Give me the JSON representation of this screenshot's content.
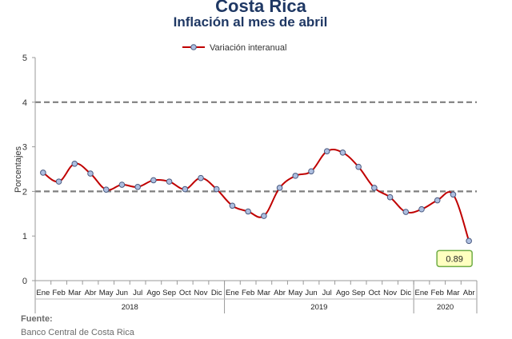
{
  "chart_data": {
    "type": "line",
    "title": "Costa Rica",
    "subtitle": "Inflación al mes de abril",
    "ylabel": "Porcentajes",
    "xlabel": "",
    "ylim": [
      0,
      5
    ],
    "yticks": [
      "0",
      "1",
      "2",
      "3",
      "4",
      "5"
    ],
    "grid": false,
    "legend_position": "top",
    "series": [
      {
        "name": "Variación interanual",
        "color": "#c00000",
        "marker_fill": "#aebfe0",
        "marker_stroke": "#4a5a80",
        "values": [
          2.42,
          2.22,
          2.62,
          2.4,
          2.04,
          2.15,
          2.1,
          2.25,
          2.22,
          2.05,
          2.3,
          2.05,
          1.68,
          1.55,
          1.45,
          2.08,
          2.35,
          2.45,
          2.9,
          2.87,
          2.55,
          2.08,
          1.87,
          1.54,
          1.6,
          1.8,
          1.93,
          0.89
        ]
      }
    ],
    "categories": [
      "Ene",
      "Feb",
      "Mar",
      "Abr",
      "May",
      "Jun",
      "Jul",
      "Ago",
      "Sep",
      "Oct",
      "Nov",
      "Dic",
      "Ene",
      "Feb",
      "Mar",
      "Abr",
      "May",
      "Jun",
      "Jul",
      "Ago",
      "Sep",
      "Oct",
      "Nov",
      "Dic",
      "Ene",
      "Feb",
      "Mar",
      "Abr"
    ],
    "years": [
      {
        "label": "2018",
        "start": 0,
        "end": 11
      },
      {
        "label": "2019",
        "start": 12,
        "end": 23
      },
      {
        "label": "2020",
        "start": 24,
        "end": 27
      }
    ],
    "reference_lines": [
      {
        "y": 4,
        "style": "dashed",
        "color": "#7f7f7f"
      },
      {
        "y": 2,
        "style": "dashed",
        "color": "#7f7f7f"
      }
    ],
    "annotation": {
      "text": "0.89",
      "index": 27,
      "fill": "#ffffc0",
      "border": "#70ad47"
    }
  },
  "source": {
    "label": "Fuente:",
    "name": "Banco Central de Costa Rica"
  }
}
